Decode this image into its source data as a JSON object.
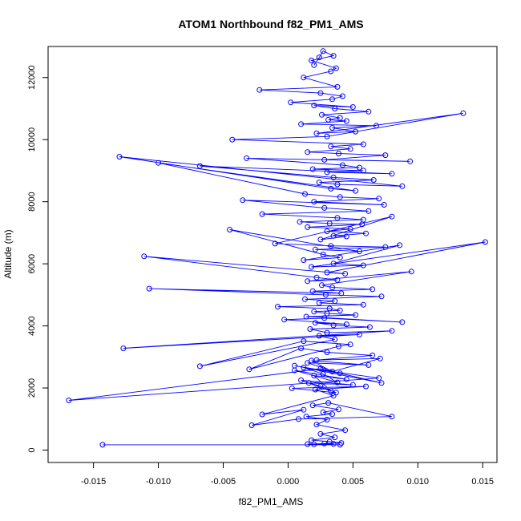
{
  "chart_data": {
    "type": "line",
    "title": "ATOM1 Northbound f82_PM1_AMS",
    "xlabel": "f82_PM1_AMS",
    "ylabel": "Altitude (m)",
    "xlim": [
      -0.0185,
      0.0161
    ],
    "ylim": [
      -400,
      13000
    ],
    "xticks": [
      -0.015,
      -0.01,
      -0.005,
      0.0,
      0.005,
      0.01,
      0.015
    ],
    "xtick_labels": [
      "-0.015",
      "-0.010",
      "-0.005",
      "0.000",
      "0.005",
      "0.010",
      "0.015"
    ],
    "yticks": [
      0,
      2000,
      4000,
      6000,
      8000,
      10000,
      12000
    ],
    "ytick_labels": [
      "0",
      "2000",
      "4000",
      "6000",
      "8000",
      "10000",
      "12000"
    ],
    "grid": false,
    "series_color": "#0000ff",
    "series": [
      {
        "name": "f82_PM1_AMS",
        "marker": "open-circle",
        "x": [
          -0.0143,
          0.004,
          0.002,
          0.0035,
          0.0015,
          0.0028,
          0.0041,
          0.0032,
          0.0018,
          0.0036,
          0.0025,
          0.0044,
          0.0022,
          0.003,
          0.0014,
          0.0034,
          0.0027,
          0.0039,
          0.0019,
          0.0031,
          0.008,
          0.0008,
          -0.0028,
          0.0012,
          -0.002,
          0.0035,
          0.0021,
          0.006,
          0.0003,
          0.0037,
          0.0025,
          0.0016,
          0.005,
          0.001,
          0.0033,
          0.002,
          0.0045,
          0.0005,
          0.0038,
          0.0027,
          0.0012,
          0.007,
          -0.0169,
          0.0025,
          0.0072,
          0.0005,
          0.004,
          0.0015,
          0.0062,
          0.0018,
          0.0034,
          0.0071,
          0.0022,
          0.0065,
          0.003,
          0.001,
          -0.003,
          0.0039,
          0.0048,
          0.0012,
          -0.0068,
          0.0036,
          0.0024,
          0.0055,
          -0.0127,
          0.008,
          0.003,
          0.0017,
          0.0063,
          0.0035,
          0.0021,
          0.0045,
          -0.0003,
          0.0028,
          0.0088,
          0.0014,
          0.0052,
          0.003,
          0.002,
          0.004,
          0.0032,
          -0.0008,
          0.0058,
          0.0024,
          0.0036,
          0.0013,
          0.0072,
          0.0029,
          -0.0107,
          0.0041,
          0.0019,
          0.0065,
          0.0034,
          0.0026,
          0.0095,
          0.0015,
          0.0038,
          0.0022,
          -0.0111,
          0.0044,
          0.003,
          0.0152,
          0.0018,
          0.0058,
          0.0035,
          0.0086,
          0.0012,
          0.004,
          0.0027,
          -0.0045,
          0.0055,
          0.0021,
          0.0075,
          0.0033,
          -0.001,
          0.008,
          0.0025,
          0.0045,
          0.0035,
          0.006,
          0.003,
          0.0048,
          0.0015,
          0.0057,
          0.0032,
          0.0009,
          0.0058,
          0.0038,
          -0.002,
          0.0062,
          0.0028,
          -0.0035,
          0.0074,
          0.002,
          0.007,
          0.004,
          0.0013,
          -0.01,
          0.0052,
          0.0033,
          -0.013,
          0.0088,
          0.0038,
          0.0024,
          0.0066,
          0.0035,
          -0.0068,
          0.008,
          0.003,
          0.0058,
          0.0019,
          0.0055,
          0.0042,
          -0.0032,
          0.0094,
          0.0028,
          0.0075,
          0.0039,
          0.0015,
          0.0048,
          0.0033,
          0.0058,
          -0.0043,
          0.003,
          0.0135,
          0.0022,
          0.0052,
          0.0034,
          0.0068,
          0.001,
          0.0045,
          0.0031,
          0.004,
          0.0026,
          0.0062,
          0.0036,
          0.002,
          0.005,
          0.0002,
          0.0034,
          0.0042,
          0.0025,
          -0.0022,
          0.0038,
          0.0012,
          0.0033,
          0.0037,
          0.0018,
          0.0035,
          0.0027,
          0.0024,
          0.002
        ],
        "y": [
          170,
          170,
          185,
          200,
          190,
          210,
          230,
          270,
          320,
          410,
          520,
          640,
          820,
          980,
          1080,
          1160,
          1220,
          1310,
          1440,
          1520,
          1080,
          1000,
          800,
          1300,
          1150,
          1750,
          1950,
          2050,
          1990,
          1850,
          2060,
          2160,
          2100,
          2250,
          1900,
          2400,
          2280,
          2570,
          2180,
          2450,
          2660,
          2320,
          1600,
          2620,
          2160,
          2720,
          2470,
          2810,
          2740,
          2880,
          2530,
          2950,
          2900,
          3050,
          3150,
          3280,
          2600,
          3340,
          3400,
          3510,
          2700,
          3560,
          3680,
          3720,
          3280,
          3840,
          3780,
          3900,
          3960,
          4020,
          4100,
          4050,
          4200,
          4250,
          4120,
          4300,
          4350,
          4400,
          4460,
          4500,
          4560,
          4620,
          4680,
          4740,
          4800,
          4860,
          4950,
          5000,
          5200,
          5050,
          5120,
          5180,
          5240,
          5310,
          5750,
          5440,
          5480,
          5560,
          6240,
          5680,
          5720,
          6700,
          5900,
          5950,
          6010,
          6600,
          6120,
          6200,
          6300,
          7100,
          6400,
          6460,
          6540,
          6580,
          6650,
          7520,
          6780,
          6880,
          6900,
          6980,
          7050,
          7120,
          7180,
          7270,
          7300,
          7350,
          7420,
          7480,
          7600,
          7700,
          7800,
          8050,
          7900,
          8000,
          8100,
          8150,
          8250,
          9250,
          8350,
          8420,
          9450,
          8500,
          8560,
          8620,
          8700,
          8780,
          9150,
          8900,
          8950,
          9000,
          9050,
          9100,
          9180,
          9400,
          9300,
          9350,
          9500,
          9550,
          9600,
          9700,
          9780,
          9850,
          10000,
          10100,
          10850,
          10200,
          10260,
          10380,
          10450,
          10500,
          10600,
          10640,
          10700,
          10800,
          10900,
          11000,
          11100,
          11050,
          11200,
          11300,
          11400,
          11500,
          11600,
          11700,
          12000,
          12200,
          12300,
          12550,
          12700,
          12850,
          12650,
          12400
        ]
      }
    ]
  }
}
